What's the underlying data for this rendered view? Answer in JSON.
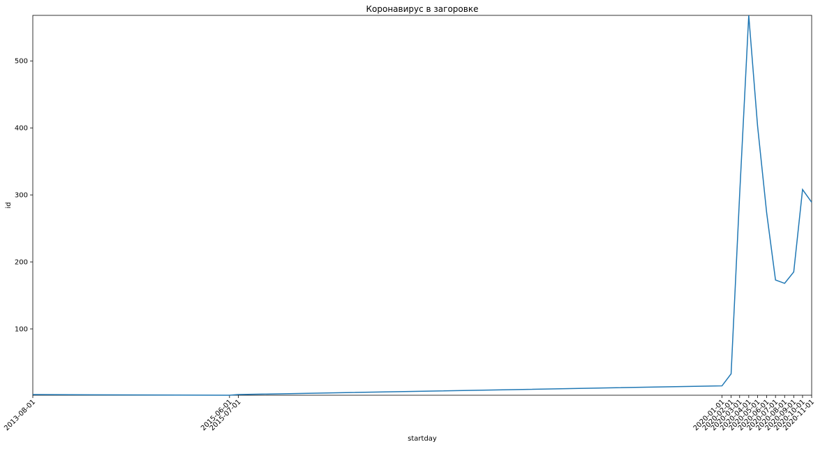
{
  "chart_data": {
    "type": "line",
    "title": "Коронавирус в загоровке",
    "x_label": "startday",
    "y_label": "id",
    "x": [
      "2013-08-01",
      "2015-06-01",
      "2015-07-01",
      "2020-01-01",
      "2020-02-01",
      "2020-03-01",
      "2020-04-01",
      "2020-05-01",
      "2020-06-01",
      "2020-07-01",
      "2020-08-01",
      "2020-09-01",
      "2020-10-01",
      "2020-11-01"
    ],
    "series": [
      {
        "name": "id",
        "color": "#1f77b4",
        "values": [
          2,
          1,
          2,
          15,
          33,
          300,
          568,
          403,
          273,
          173,
          168,
          185,
          308,
          289
        ]
      }
    ],
    "xlim": [
      "2013-08-01",
      "2020-11-01"
    ],
    "xticks": [
      "2013-08-01",
      "2015-06-01",
      "2015-07-01",
      "2020-01-01",
      "2020-02-01",
      "2020-03-01",
      "2020-04-01",
      "2020-05-01",
      "2020-06-01",
      "2020-07-01",
      "2020-08-01",
      "2020-09-01",
      "2020-10-01",
      "2020-11-01"
    ],
    "ylim": [
      1,
      568
    ],
    "yticks": [
      100,
      200,
      300,
      400,
      500
    ],
    "grid": false
  }
}
